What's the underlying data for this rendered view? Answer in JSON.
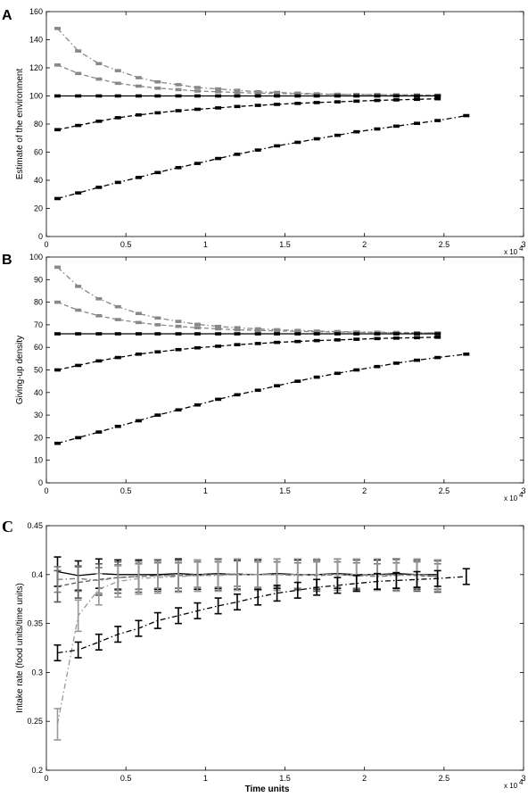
{
  "chart_data": [
    {
      "panel": "A",
      "type": "line",
      "title": "",
      "xlabel": "",
      "ylabel": "Estimate of the environment",
      "xlim": [
        0,
        30000
      ],
      "ylim": [
        0,
        160
      ],
      "x_ticks": [
        "0",
        "0.5",
        "1",
        "1.5",
        "2",
        "2.5",
        "3"
      ],
      "x_tick_values": [
        0,
        5000,
        10000,
        15000,
        20000,
        25000,
        30000
      ],
      "y_ticks": [
        "0",
        "20",
        "40",
        "60",
        "80",
        "100",
        "120",
        "140",
        "160"
      ],
      "x_scale_note": "x 10",
      "x_scale_exp": "4",
      "grid": false,
      "series": [
        {
          "color": "#888888",
          "style": "dashdot",
          "x": [
            700,
            2000,
            3300,
            4500,
            5800,
            7000,
            8300,
            9500,
            10800,
            12000,
            13300,
            14500,
            15800,
            17000,
            18300,
            19500,
            20800,
            22000,
            23300,
            24600
          ],
          "y": [
            148,
            132,
            123,
            118,
            113,
            110,
            108,
            106,
            105,
            104,
            103,
            102.5,
            102,
            101.5,
            101.2,
            101,
            101,
            100.8,
            100.6,
            100.5
          ]
        },
        {
          "color": "#888888",
          "style": "dashed",
          "x": [
            700,
            2000,
            3300,
            4500,
            5800,
            7000,
            8300,
            9500,
            10800,
            12000,
            13300,
            14500,
            15800,
            17000,
            18300,
            19500,
            20800,
            22000,
            23300,
            24600
          ],
          "y": [
            122,
            116,
            112,
            109,
            107,
            105.5,
            104.5,
            103.5,
            103,
            102.5,
            102,
            101.8,
            101.5,
            101.3,
            101.1,
            101,
            100.9,
            100.8,
            100.7,
            100.5
          ]
        },
        {
          "color": "#000000",
          "style": "solid",
          "x": [
            700,
            2000,
            3300,
            4500,
            5800,
            7000,
            8300,
            9500,
            10800,
            12000,
            13300,
            14500,
            15800,
            17000,
            18300,
            19500,
            20800,
            22000,
            23300,
            24600
          ],
          "y": [
            100,
            100,
            100,
            100,
            100,
            100,
            100,
            100,
            100,
            100,
            100,
            100,
            100,
            100,
            100,
            100,
            100,
            100,
            100,
            100
          ]
        },
        {
          "color": "#000000",
          "style": "dashed",
          "x": [
            700,
            2000,
            3300,
            4500,
            5800,
            7000,
            8300,
            9500,
            10800,
            12000,
            13300,
            14500,
            15800,
            17000,
            18300,
            19500,
            20800,
            22000,
            23300,
            24600
          ],
          "y": [
            76,
            79,
            82,
            84.5,
            86.5,
            88,
            89.5,
            90.5,
            91.5,
            92.5,
            93.3,
            94,
            94.7,
            95.3,
            95.8,
            96.3,
            96.8,
            97.2,
            97.6,
            98
          ]
        },
        {
          "color": "#000000",
          "style": "dashdot",
          "x": [
            700,
            2000,
            3300,
            4500,
            5800,
            7000,
            8300,
            9500,
            10800,
            12000,
            13300,
            14500,
            15800,
            17000,
            18300,
            19500,
            20800,
            22000,
            23300,
            24600,
            26400
          ],
          "y": [
            27,
            31,
            35,
            38.5,
            42,
            45.5,
            49,
            52,
            55.5,
            58.5,
            61.5,
            64.5,
            67,
            69.5,
            72,
            74.5,
            76.5,
            78.5,
            80.5,
            82.5,
            86
          ]
        }
      ]
    },
    {
      "panel": "B",
      "type": "line",
      "title": "",
      "xlabel": "",
      "ylabel": "Giving-up density",
      "xlim": [
        0,
        30000
      ],
      "ylim": [
        0,
        100
      ],
      "x_ticks": [
        "0",
        "0.5",
        "1",
        "1.5",
        "2",
        "2.5",
        "3"
      ],
      "x_tick_values": [
        0,
        5000,
        10000,
        15000,
        20000,
        25000,
        30000
      ],
      "y_ticks": [
        "0",
        "10",
        "20",
        "30",
        "40",
        "50",
        "60",
        "70",
        "80",
        "90",
        "100"
      ],
      "x_scale_note": "x 10",
      "x_scale_exp": "4",
      "grid": false,
      "series": [
        {
          "color": "#888888",
          "style": "dashdot",
          "x": [
            700,
            2000,
            3300,
            4500,
            5800,
            7000,
            8300,
            9500,
            10800,
            12000,
            13300,
            14500,
            15800,
            17000,
            18300,
            19500,
            20800,
            22000,
            23300,
            24600
          ],
          "y": [
            95.5,
            87,
            81.5,
            78,
            75,
            73,
            71.5,
            70.2,
            69.3,
            68.7,
            68.2,
            67.8,
            67.5,
            67.2,
            67,
            66.8,
            66.7,
            66.6,
            66.5,
            66.4
          ]
        },
        {
          "color": "#888888",
          "style": "dashed",
          "x": [
            700,
            2000,
            3300,
            4500,
            5800,
            7000,
            8300,
            9500,
            10800,
            12000,
            13300,
            14500,
            15800,
            17000,
            18300,
            19500,
            20800,
            22000,
            23300,
            24600
          ],
          "y": [
            80,
            76.5,
            74,
            72.3,
            71,
            70,
            69.3,
            68.7,
            68.2,
            67.8,
            67.5,
            67.3,
            67.1,
            66.9,
            66.8,
            66.7,
            66.6,
            66.5,
            66.4,
            66.3
          ]
        },
        {
          "color": "#000000",
          "style": "solid",
          "x": [
            700,
            2000,
            3300,
            4500,
            5800,
            7000,
            8300,
            9500,
            10800,
            12000,
            13300,
            14500,
            15800,
            17000,
            18300,
            19500,
            20800,
            22000,
            23300,
            24600
          ],
          "y": [
            66,
            66,
            66,
            66,
            66,
            66,
            66,
            66,
            66,
            66,
            66,
            66,
            66,
            66,
            66,
            66,
            66,
            66,
            66,
            66
          ]
        },
        {
          "color": "#000000",
          "style": "dashed",
          "x": [
            700,
            2000,
            3300,
            4500,
            5800,
            7000,
            8300,
            9500,
            10800,
            12000,
            13300,
            14500,
            15800,
            17000,
            18300,
            19500,
            20800,
            22000,
            23300,
            24600
          ],
          "y": [
            50,
            52,
            54,
            55.5,
            57,
            58,
            59,
            59.8,
            60.5,
            61.2,
            61.7,
            62.2,
            62.6,
            63,
            63.3,
            63.6,
            63.9,
            64.1,
            64.3,
            64.5
          ]
        },
        {
          "color": "#000000",
          "style": "dashdot",
          "x": [
            700,
            2000,
            3300,
            4500,
            5800,
            7000,
            8300,
            9500,
            10800,
            12000,
            13300,
            14500,
            15800,
            17000,
            18300,
            19500,
            20800,
            22000,
            23300,
            24600,
            26400
          ],
          "y": [
            17.5,
            20,
            22.5,
            25,
            27.5,
            30,
            32.3,
            34.5,
            37,
            39,
            41,
            43,
            45,
            46.8,
            48.5,
            50,
            51.5,
            53,
            54.3,
            55.5,
            57
          ]
        }
      ]
    },
    {
      "panel": "C",
      "type": "line",
      "title": "",
      "xlabel": "Time units",
      "ylabel": "Intake rate (food units/time units)",
      "xlim": [
        0,
        30000
      ],
      "ylim": [
        0.2,
        0.45
      ],
      "x_ticks": [
        "0",
        "0.5",
        "1",
        "1.5",
        "2",
        "2.5",
        "3"
      ],
      "x_tick_values": [
        0,
        5000,
        10000,
        15000,
        20000,
        25000,
        30000
      ],
      "y_ticks": [
        "0.2",
        "0.25",
        "0.3",
        "0.35",
        "0.4",
        "0.45"
      ],
      "x_scale_note": "x 10",
      "x_scale_exp": "4",
      "grid": false,
      "series": [
        {
          "color": "#000000",
          "style": "solid",
          "err": 0.015,
          "x": [
            700,
            2000,
            3300,
            4500,
            5800,
            7000,
            8300,
            9500,
            10800,
            12000,
            13300,
            14500,
            15800,
            17000,
            18300,
            19500,
            20800,
            22000,
            23300,
            24600
          ],
          "y": [
            0.403,
            0.399,
            0.401,
            0.4,
            0.4,
            0.4,
            0.401,
            0.4,
            0.401,
            0.4,
            0.4,
            0.401,
            0.4,
            0.4,
            0.401,
            0.4,
            0.4,
            0.401,
            0.4,
            0.4
          ]
        },
        {
          "color": "#555555",
          "style": "dashed",
          "err": 0.016,
          "x": [
            700,
            2000,
            3300,
            4500,
            5800,
            7000,
            8300,
            9500,
            10800,
            12000,
            13300,
            14500,
            15800,
            17000,
            18300,
            19500,
            20800,
            22000,
            23300,
            24600
          ],
          "y": [
            0.388,
            0.392,
            0.395,
            0.397,
            0.398,
            0.399,
            0.399,
            0.399,
            0.4,
            0.4,
            0.4,
            0.4,
            0.4,
            0.399,
            0.4,
            0.399,
            0.4,
            0.4,
            0.399,
            0.398
          ]
        },
        {
          "color": "#777777",
          "style": "dashdot",
          "err": 0.013,
          "x": [
            700,
            2000,
            3300,
            4500,
            5800,
            7000,
            8300,
            9500,
            10800,
            12000,
            13300,
            14500,
            15800,
            17000,
            18300,
            19500,
            20800,
            22000,
            23300,
            24600
          ],
          "y": [
            0.395,
            0.396,
            0.394,
            0.397,
            0.398,
            0.399,
            0.399,
            0.4,
            0.4,
            0.401,
            0.4,
            0.4,
            0.399,
            0.4,
            0.4,
            0.399,
            0.398,
            0.399,
            0.4,
            0.398
          ]
        },
        {
          "color": "#999999",
          "style": "dashdot",
          "err": 0.016,
          "x": [
            700,
            2000,
            3300,
            4500,
            5800,
            7000,
            8300,
            9500,
            10800,
            12000,
            13300,
            14500,
            15800,
            17000,
            18300,
            19500,
            20800,
            22000,
            23300,
            24600
          ],
          "y": [
            0.247,
            0.358,
            0.385,
            0.393,
            0.396,
            0.397,
            0.398,
            0.399,
            0.399,
            0.4,
            0.4,
            0.4,
            0.4,
            0.4,
            0.4,
            0.4,
            0.4,
            0.399,
            0.4,
            0.399
          ]
        },
        {
          "color": "#000000",
          "style": "dashdot",
          "err": 0.008,
          "x": [
            700,
            2000,
            3300,
            4500,
            5800,
            7000,
            8300,
            9500,
            10800,
            12000,
            13300,
            14500,
            15800,
            17000,
            18300,
            19500,
            20800,
            22000,
            23300,
            24600,
            26400
          ],
          "y": [
            0.32,
            0.323,
            0.331,
            0.339,
            0.345,
            0.353,
            0.358,
            0.363,
            0.368,
            0.372,
            0.377,
            0.381,
            0.384,
            0.387,
            0.389,
            0.391,
            0.393,
            0.394,
            0.395,
            0.396,
            0.398
          ]
        }
      ]
    }
  ]
}
